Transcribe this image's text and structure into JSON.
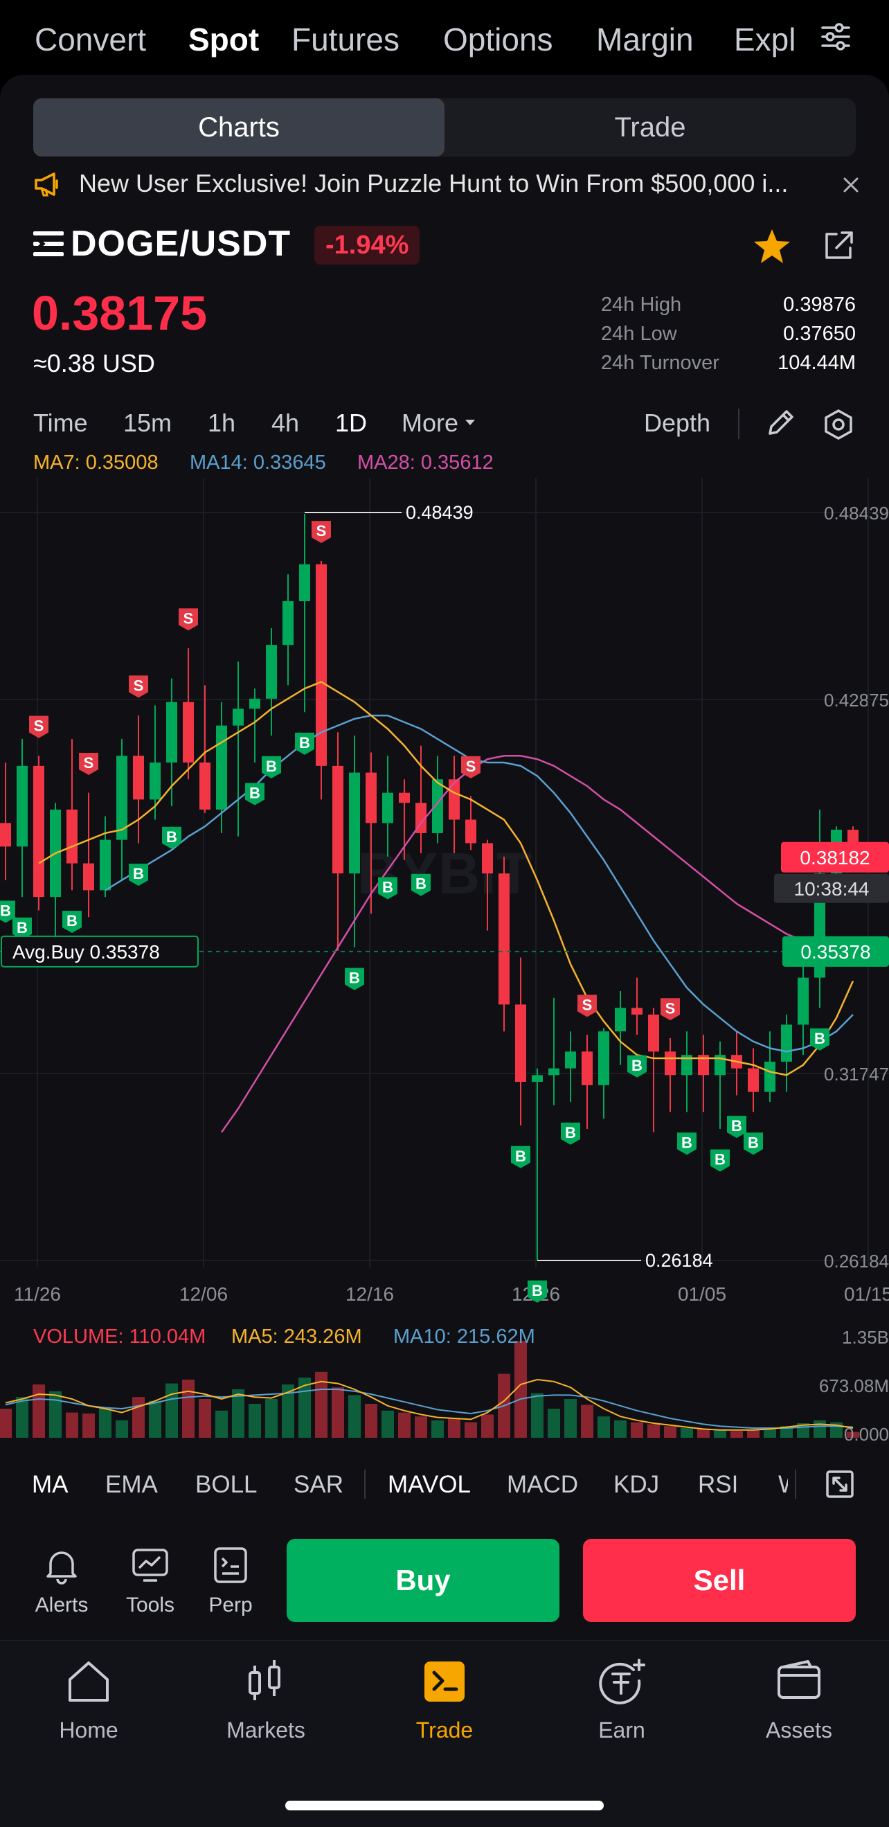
{
  "top_tabs": [
    "Convert",
    "Spot",
    "Futures",
    "Options",
    "Margin",
    "Expl"
  ],
  "top_tabs_active": "Spot",
  "segment": {
    "charts": "Charts",
    "trade": "Trade",
    "active": "Charts"
  },
  "banner": {
    "text": "New User Exclusive! Join Puzzle Hunt to Win From $500,000 i..."
  },
  "pair": {
    "symbol": "DOGE/USDT",
    "change": "-1.94%",
    "price": "0.38175",
    "usd_price": "≈0.38 USD"
  },
  "stats": [
    {
      "label": "24h High",
      "value": "0.39876"
    },
    {
      "label": "24h Low",
      "value": "0.37650"
    },
    {
      "label": "24h Turnover",
      "value": "104.44M"
    }
  ],
  "intervals": [
    "Time",
    "15m",
    "1h",
    "4h",
    "1D",
    "More"
  ],
  "interval_active": "1D",
  "depth_label": "Depth",
  "ma_legend": {
    "ma7": "MA7: 0.35008",
    "ma14": "MA14: 0.33645",
    "ma28": "MA28: 0.35612"
  },
  "colors": {
    "up": "#00a85a",
    "down": "#f23645",
    "ma7": "#f7b32b",
    "ma14": "#5aa0d0",
    "ma28": "#d44fa8",
    "accent": "#f7a600"
  },
  "chart_data": {
    "type": "candlestick",
    "y_ticks": [
      "0.48439",
      "0.42875",
      "0.31747",
      "0.26184"
    ],
    "x_ticks": [
      "11/26",
      "12/06",
      "12/16",
      "12/26",
      "01/05",
      "01/15"
    ],
    "ylim": [
      0.26184,
      0.48439
    ],
    "high_marker": "0.48439",
    "low_marker": "0.26184",
    "avg_buy_label": "Avg.Buy 0.35378",
    "avg_buy_value": "0.35378",
    "current_price": "0.38182",
    "countdown": "10:38:44",
    "watermark": "BYBIT",
    "candles": [
      [
        0.392,
        0.41,
        0.375,
        0.385
      ],
      [
        0.385,
        0.417,
        0.37,
        0.409
      ],
      [
        0.409,
        0.412,
        0.366,
        0.37
      ],
      [
        0.37,
        0.398,
        0.358,
        0.396
      ],
      [
        0.396,
        0.417,
        0.372,
        0.38
      ],
      [
        0.38,
        0.401,
        0.364,
        0.372
      ],
      [
        0.372,
        0.394,
        0.37,
        0.387
      ],
      [
        0.387,
        0.417,
        0.375,
        0.412
      ],
      [
        0.412,
        0.424,
        0.386,
        0.399
      ],
      [
        0.399,
        0.427,
        0.393,
        0.41
      ],
      [
        0.41,
        0.435,
        0.397,
        0.428
      ],
      [
        0.428,
        0.444,
        0.405,
        0.41
      ],
      [
        0.41,
        0.433,
        0.395,
        0.396
      ],
      [
        0.396,
        0.428,
        0.389,
        0.421
      ],
      [
        0.421,
        0.44,
        0.388,
        0.426
      ],
      [
        0.426,
        0.432,
        0.41,
        0.429
      ],
      [
        0.429,
        0.45,
        0.418,
        0.445
      ],
      [
        0.445,
        0.466,
        0.433,
        0.458
      ],
      [
        0.458,
        0.484,
        0.425,
        0.469
      ],
      [
        0.469,
        0.47,
        0.399,
        0.409
      ],
      [
        0.409,
        0.419,
        0.354,
        0.377
      ],
      [
        0.377,
        0.418,
        0.355,
        0.407
      ],
      [
        0.407,
        0.413,
        0.365,
        0.392
      ],
      [
        0.392,
        0.412,
        0.382,
        0.401
      ],
      [
        0.401,
        0.405,
        0.381,
        0.398
      ],
      [
        0.398,
        0.415,
        0.383,
        0.389
      ],
      [
        0.389,
        0.412,
        0.386,
        0.405
      ],
      [
        0.405,
        0.412,
        0.383,
        0.393
      ],
      [
        0.393,
        0.4,
        0.384,
        0.386
      ],
      [
        0.386,
        0.387,
        0.36,
        0.377
      ],
      [
        0.377,
        0.382,
        0.33,
        0.338
      ],
      [
        0.338,
        0.352,
        0.302,
        0.315
      ],
      [
        0.315,
        0.319,
        0.262,
        0.317
      ],
      [
        0.317,
        0.34,
        0.308,
        0.319
      ],
      [
        0.319,
        0.33,
        0.309,
        0.324
      ],
      [
        0.324,
        0.329,
        0.301,
        0.314
      ],
      [
        0.314,
        0.331,
        0.304,
        0.33
      ],
      [
        0.33,
        0.342,
        0.32,
        0.337
      ],
      [
        0.337,
        0.346,
        0.329,
        0.335
      ],
      [
        0.335,
        0.337,
        0.3,
        0.324
      ],
      [
        0.324,
        0.328,
        0.306,
        0.317
      ],
      [
        0.317,
        0.33,
        0.306,
        0.323
      ],
      [
        0.323,
        0.329,
        0.306,
        0.317
      ],
      [
        0.317,
        0.327,
        0.301,
        0.323
      ],
      [
        0.323,
        0.33,
        0.311,
        0.319
      ],
      [
        0.319,
        0.325,
        0.306,
        0.312
      ],
      [
        0.312,
        0.33,
        0.309,
        0.321
      ],
      [
        0.321,
        0.335,
        0.312,
        0.332
      ],
      [
        0.332,
        0.352,
        0.323,
        0.346
      ],
      [
        0.346,
        0.396,
        0.337,
        0.377
      ],
      [
        0.377,
        0.391,
        0.369,
        0.39
      ],
      [
        0.39,
        0.391,
        0.382,
        0.382
      ]
    ],
    "ma7": [
      0.38,
      0.383,
      0.385,
      0.387,
      0.389,
      0.39,
      0.393,
      0.397,
      0.403,
      0.408,
      0.413,
      0.416,
      0.419,
      0.422,
      0.426,
      0.429,
      0.432,
      0.434,
      0.431,
      0.428,
      0.424,
      0.42,
      0.415,
      0.409,
      0.404,
      0.401,
      0.399,
      0.396,
      0.393,
      0.386,
      0.375,
      0.363,
      0.35,
      0.34,
      0.333,
      0.327,
      0.323,
      0.322,
      0.322,
      0.322,
      0.322,
      0.322,
      0.321,
      0.32,
      0.318,
      0.317,
      0.32,
      0.326,
      0.334,
      0.345
    ],
    "ma14": [
      0.372,
      0.375,
      0.378,
      0.381,
      0.384,
      0.388,
      0.391,
      0.395,
      0.399,
      0.403,
      0.408,
      0.412,
      0.416,
      0.419,
      0.421,
      0.423,
      0.424,
      0.424,
      0.422,
      0.42,
      0.417,
      0.414,
      0.411,
      0.41,
      0.41,
      0.409,
      0.406,
      0.401,
      0.395,
      0.388,
      0.381,
      0.373,
      0.365,
      0.357,
      0.35,
      0.343,
      0.338,
      0.334,
      0.33,
      0.327,
      0.325,
      0.324,
      0.325,
      0.327,
      0.33,
      0.335
    ],
    "ma28": [
      0.3,
      0.307,
      0.315,
      0.323,
      0.331,
      0.339,
      0.347,
      0.355,
      0.363,
      0.371,
      0.378,
      0.385,
      0.392,
      0.398,
      0.404,
      0.408,
      0.411,
      0.412,
      0.412,
      0.411,
      0.409,
      0.406,
      0.403,
      0.399,
      0.396,
      0.392,
      0.388,
      0.384,
      0.38,
      0.376,
      0.372,
      0.368,
      0.365,
      0.362,
      0.359,
      0.357,
      0.355,
      0.354,
      0.353
    ]
  },
  "volume": {
    "legend_volume": "VOLUME: 110.04M",
    "legend_ma5": "MA5: 243.26M",
    "legend_ma10": "MA10: 215.62M",
    "y_ticks": [
      "1.35B",
      "673.08M",
      "0.000"
    ]
  },
  "indicators_main": [
    "MA",
    "EMA",
    "BOLL",
    "SAR"
  ],
  "indicators_sub": [
    "MAVOL",
    "MACD",
    "KDJ",
    "RSI",
    "W"
  ],
  "tools": [
    {
      "label": "Alerts",
      "icon": "bell-icon"
    },
    {
      "label": "Tools",
      "icon": "chart-tools-icon"
    },
    {
      "label": "Perp",
      "icon": "perp-icon"
    }
  ],
  "buttons": {
    "buy": "Buy",
    "sell": "Sell"
  },
  "nav": [
    {
      "label": "Home",
      "icon": "home-icon"
    },
    {
      "label": "Markets",
      "icon": "markets-icon"
    },
    {
      "label": "Trade",
      "icon": "trade-icon"
    },
    {
      "label": "Earn",
      "icon": "earn-icon"
    },
    {
      "label": "Assets",
      "icon": "wallet-icon"
    }
  ],
  "nav_active": "Trade"
}
